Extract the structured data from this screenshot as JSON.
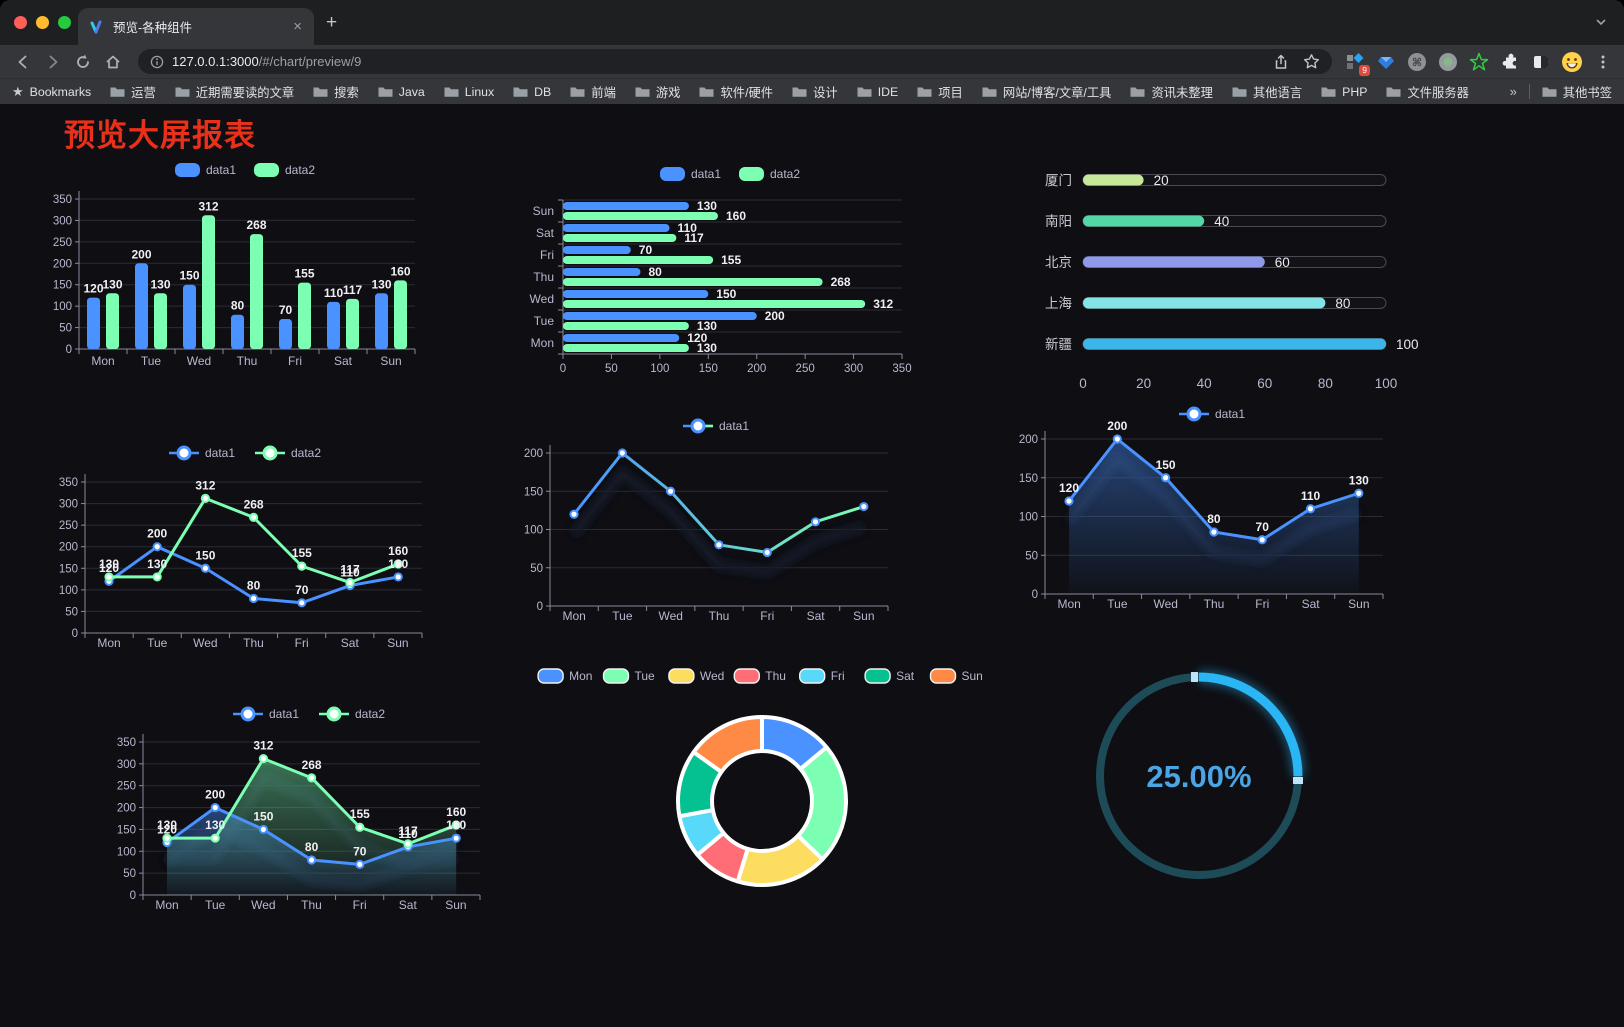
{
  "browser": {
    "tab": {
      "title": "预览-各种组件",
      "close": "×",
      "new_tab": "+"
    },
    "address": {
      "host": "127.0.0.1:3000",
      "path": "/#/chart/preview/9"
    },
    "extension_badge": "9",
    "bookmarks_bar": {
      "root": "Bookmarks",
      "folders": [
        "运营",
        "近期需要读的文章",
        "搜索",
        "Java",
        "Linux",
        "DB",
        "前端",
        "游戏",
        "软件/硬件",
        "设计",
        "IDE",
        "项目",
        "网站/博客/文章/工具",
        "资讯未整理",
        "其他语言",
        "PHP",
        "文件服务器"
      ],
      "overflow": "»",
      "other": "其他书签"
    }
  },
  "page": {
    "title": "预览大屏报表"
  },
  "palette": {
    "background": "#0e0e13",
    "title_red": "#e8301a",
    "axis_text": "#b9b8ce",
    "grid_line": "rgba(185,184,206,0.18)",
    "axis_line": "#8b8b9c",
    "value_label": "#f0f0f3",
    "data1_blue": "#4992ff",
    "data2_green": "#7cffb2"
  },
  "chart_data": [
    {
      "id": "bar-vertical",
      "type": "bar",
      "legend_position": "top",
      "categories": [
        "Mon",
        "Tue",
        "Wed",
        "Thu",
        "Fri",
        "Sat",
        "Sun"
      ],
      "series": [
        {
          "name": "data1",
          "color": "#4992ff",
          "values": [
            120,
            200,
            150,
            80,
            70,
            110,
            130
          ]
        },
        {
          "name": "data2",
          "color": "#7cffb2",
          "values": [
            130,
            130,
            312,
            268,
            155,
            117,
            160
          ]
        }
      ],
      "ylim": [
        0,
        350
      ],
      "ytick_step": 50,
      "grid": true
    },
    {
      "id": "bar-horizontal",
      "type": "bar",
      "orientation": "horizontal",
      "legend_position": "top",
      "categories": [
        "Mon",
        "Tue",
        "Wed",
        "Thu",
        "Fri",
        "Sat",
        "Sun"
      ],
      "series": [
        {
          "name": "data1",
          "color": "#4992ff",
          "values": [
            120,
            200,
            150,
            80,
            70,
            110,
            130
          ]
        },
        {
          "name": "data2",
          "color": "#7cffb2",
          "values": [
            130,
            130,
            312,
            268,
            155,
            117,
            160
          ]
        }
      ],
      "xlim": [
        0,
        350
      ],
      "xtick_step": 50,
      "grid": true
    },
    {
      "id": "progress-bars",
      "type": "bar",
      "orientation": "progress",
      "items": [
        {
          "label": "厦门",
          "value": 20,
          "color": "#c7e89b"
        },
        {
          "label": "南阳",
          "value": 40,
          "color": "#53d7a6"
        },
        {
          "label": "北京",
          "value": 60,
          "color": "#8f99ea"
        },
        {
          "label": "上海",
          "value": 80,
          "color": "#82e4e6"
        },
        {
          "label": "新疆",
          "value": 100,
          "color": "#3cb6e8"
        }
      ],
      "xlim": [
        0,
        100
      ],
      "xticks": [
        0,
        20,
        40,
        60,
        80,
        100
      ]
    },
    {
      "id": "line-two-series",
      "type": "line",
      "legend_position": "top",
      "point_labels": true,
      "categories": [
        "Mon",
        "Tue",
        "Wed",
        "Thu",
        "Fri",
        "Sat",
        "Sun"
      ],
      "series": [
        {
          "name": "data1",
          "color": "#4992ff",
          "values": [
            120,
            200,
            150,
            80,
            70,
            110,
            130
          ]
        },
        {
          "name": "data2",
          "color": "#7cffb2",
          "values": [
            130,
            130,
            312,
            268,
            155,
            117,
            160
          ]
        }
      ],
      "ylim": [
        0,
        350
      ],
      "ytick_step": 50,
      "grid": true
    },
    {
      "id": "line-gradient",
      "type": "line",
      "legend_position": "top",
      "point_labels": false,
      "categories": [
        "Mon",
        "Tue",
        "Wed",
        "Thu",
        "Fri",
        "Sat",
        "Sun"
      ],
      "series": [
        {
          "name": "data1",
          "color": "#4992ff",
          "color_end": "#7cffb2",
          "values": [
            120,
            200,
            150,
            80,
            70,
            110,
            130
          ]
        }
      ],
      "ylim": [
        0,
        200
      ],
      "ytick_step": 50,
      "grid": true,
      "shadow": true
    },
    {
      "id": "area-single",
      "type": "area",
      "legend_position": "top",
      "point_labels": true,
      "categories": [
        "Mon",
        "Tue",
        "Wed",
        "Thu",
        "Fri",
        "Sat",
        "Sun"
      ],
      "series": [
        {
          "name": "data1",
          "color": "#4992ff",
          "values": [
            120,
            200,
            150,
            80,
            70,
            110,
            130
          ]
        }
      ],
      "ylim": [
        0,
        200
      ],
      "ytick_step": 50,
      "grid": true,
      "shadow": true
    },
    {
      "id": "area-two-series",
      "type": "area",
      "legend_position": "top",
      "point_labels": true,
      "categories": [
        "Mon",
        "Tue",
        "Wed",
        "Thu",
        "Fri",
        "Sat",
        "Sun"
      ],
      "series": [
        {
          "name": "data1",
          "color": "#4992ff",
          "values": [
            120,
            200,
            150,
            80,
            70,
            110,
            130
          ]
        },
        {
          "name": "data2",
          "color": "#7cffb2",
          "values": [
            130,
            130,
            312,
            268,
            155,
            117,
            160
          ]
        }
      ],
      "ylim": [
        0,
        350
      ],
      "ytick_step": 50,
      "grid": true,
      "shadow": true
    },
    {
      "id": "donut",
      "type": "pie",
      "legend_position": "top",
      "inner_radius_ratio": 0.6,
      "labels": [
        "Mon",
        "Tue",
        "Wed",
        "Thu",
        "Fri",
        "Sat",
        "Sun"
      ],
      "values": [
        120,
        200,
        150,
        80,
        70,
        110,
        130
      ],
      "colors": [
        "#4992ff",
        "#7cffb2",
        "#fddd60",
        "#ff6e76",
        "#58d9f9",
        "#05c091",
        "#ff8a45"
      ]
    },
    {
      "id": "gauge",
      "type": "gauge",
      "value": 25,
      "label": "25.00%",
      "color": "#2ab5f5",
      "track_color": "#1d4b58",
      "text_color": "#4ba4e3",
      "start_angle": 90,
      "direction": "clockwise"
    }
  ]
}
